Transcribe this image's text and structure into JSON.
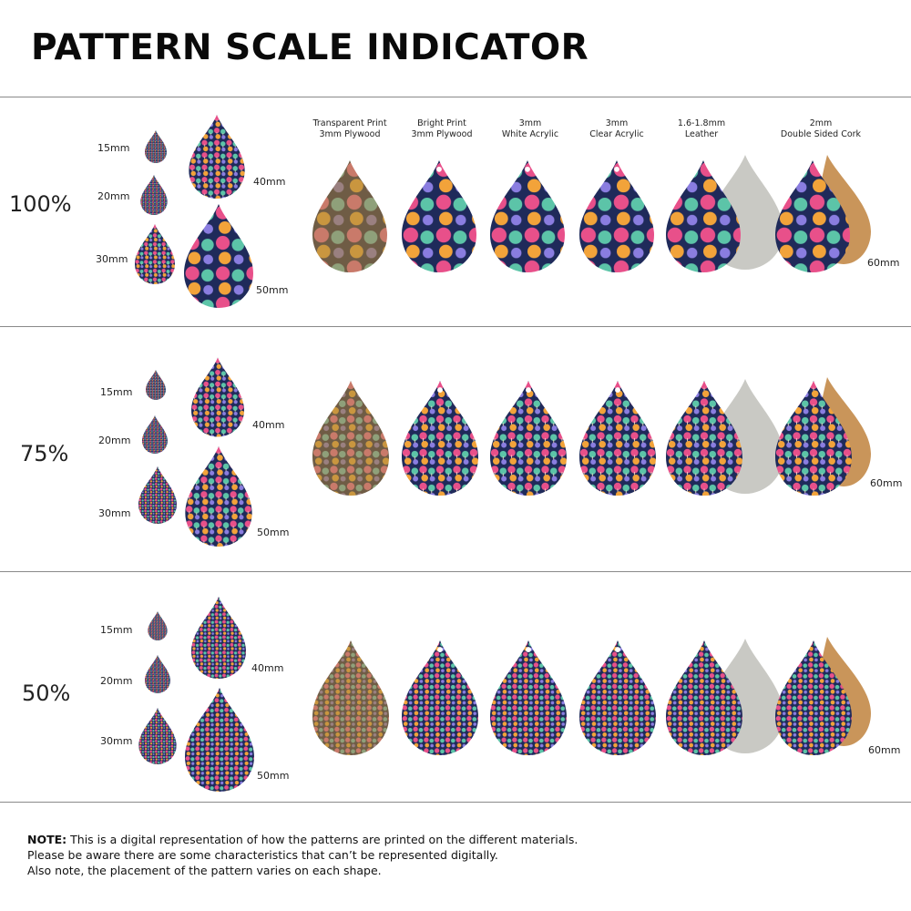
{
  "title": "PATTERN SCALE INDICATOR",
  "materials": [
    {
      "line1": "Transparent Print",
      "line2": "3mm Plywood"
    },
    {
      "line1": "Bright Print",
      "line2": "3mm Plywood"
    },
    {
      "line1": "3mm",
      "line2": "White Acrylic"
    },
    {
      "line1": "3mm",
      "line2": "Clear Acrylic"
    },
    {
      "line1": "1.6-1.8mm",
      "line2": "Leather"
    },
    {
      "line1": "2mm",
      "line2": "Double Sided Cork"
    }
  ],
  "sizes": {
    "s15": "15mm",
    "s20": "20mm",
    "s30": "30mm",
    "s40": "40mm",
    "s50": "50mm",
    "s60": "60mm"
  },
  "rows": [
    {
      "percent": "100%"
    },
    {
      "percent": "75%"
    },
    {
      "percent": "50%"
    }
  ],
  "note": {
    "bold": "NOTE:",
    "line1": " This is a digital representation of how the patterns are printed on the different materials.",
    "line2": "Please be aware there are some characteristics that can’t be represented digitally.",
    "line3": "Also note, the placement of the pattern varies on each shape."
  },
  "colors": {
    "navy": "#1f2a5a",
    "wood": "#7a6a52",
    "leather_back": "#c9c9c4",
    "cork": "#c9955a",
    "divider": "#8a8a8a"
  }
}
